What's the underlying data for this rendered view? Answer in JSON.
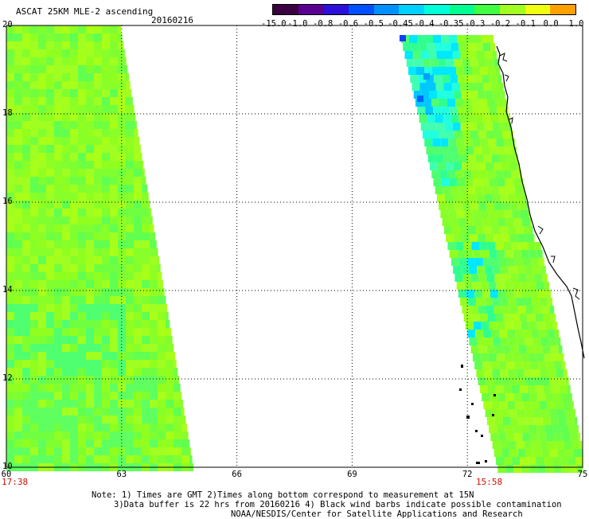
{
  "header": {
    "title": "ASCAT 25KM MLE-2 ascending",
    "date": "20160216"
  },
  "colorbar": {
    "labels": [
      "-15.0",
      "-1.0",
      "-0.8",
      "-0.6",
      "-0.5",
      "-0.45",
      "-0.4",
      "-0.35",
      "-0.3",
      "-0.2",
      "-0.1",
      "0.0",
      "1.0"
    ],
    "colors": [
      "#3a0040",
      "#5a0090",
      "#2a10d8",
      "#0050ff",
      "#0090ff",
      "#00d0ff",
      "#00ffd8",
      "#00ff90",
      "#40ff40",
      "#a0ff20",
      "#f0ff10",
      "#ffa000",
      "#ff3000"
    ]
  },
  "map": {
    "lon_ticks": [
      "60",
      "63",
      "66",
      "69",
      "72",
      "75"
    ],
    "lat_ticks": [
      "20",
      "18",
      "16",
      "14",
      "12",
      "10"
    ],
    "pass_times": [
      "17:38",
      "15:58"
    ]
  },
  "footer": {
    "line1": "Note: 1) Times are GMT 2)Times along bottom correspond to measurement at 15N",
    "line2": "3)Data buffer is 22 hrs from 20160216 4) Black wind barbs indicate possible contamination",
    "line3": "NOAA/NESDIS/Center for Satellite Applications and Research"
  }
}
